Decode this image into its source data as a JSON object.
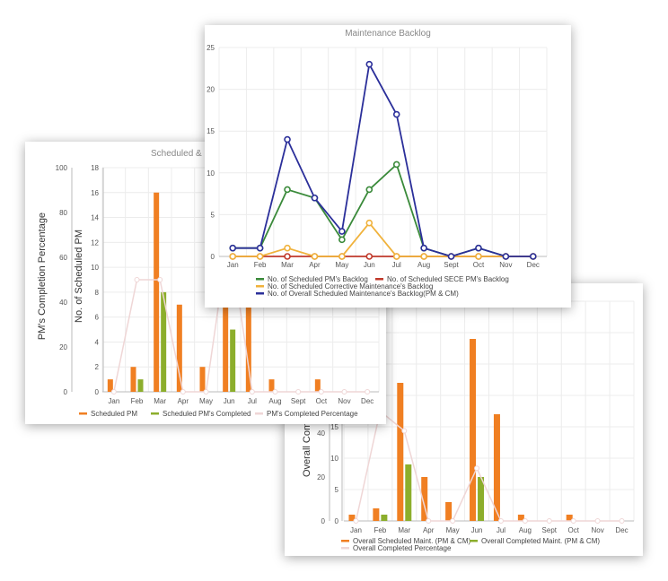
{
  "chart_data": [
    {
      "id": "scheduled_pm",
      "type": "bar",
      "title": "Scheduled &",
      "categories": [
        "Jan",
        "Feb",
        "Mar",
        "Apr",
        "May",
        "Jun",
        "Jul",
        "Aug",
        "Sept",
        "Oct",
        "Nov",
        "Dec"
      ],
      "ylabel": "No. of Scheduled PM",
      "y2label": "PM's Completion Percentage",
      "ylim": [
        0,
        18
      ],
      "y2lim": [
        0,
        100
      ],
      "grid": true,
      "legend_position": "bottom",
      "series": [
        {
          "name": "Scheduled PM",
          "type": "bar",
          "axis": "y",
          "color": "#f07f22",
          "values": [
            1,
            2,
            16,
            7,
            2,
            7,
            7,
            1,
            0,
            1,
            0,
            0
          ]
        },
        {
          "name": "Scheduled PM's Completed",
          "type": "bar",
          "axis": "y",
          "color": "#8cae2c",
          "values": [
            0,
            1,
            8,
            0,
            0,
            5,
            0,
            0,
            0,
            0,
            0,
            0
          ]
        },
        {
          "name": "PM's Completed Percentage",
          "type": "line",
          "axis": "y2",
          "color": "#efd6d6",
          "values": [
            0,
            50,
            50,
            0,
            0,
            71,
            0,
            0,
            0,
            0,
            0,
            0
          ]
        }
      ]
    },
    {
      "id": "overall_maintenance",
      "type": "bar",
      "title": "",
      "categories": [
        "Jan",
        "Feb",
        "Mar",
        "Apr",
        "May",
        "Jun",
        "Jul",
        "Aug",
        "Sept",
        "Oct",
        "Nov",
        "Dec"
      ],
      "ylabel": "",
      "y2label": "Overall Com",
      "ylim": [
        0,
        35
      ],
      "y2lim": [
        0,
        100
      ],
      "grid": true,
      "legend_position": "bottom",
      "series": [
        {
          "name": "Overall Scheduled  Maint. (PM & CM)",
          "type": "bar",
          "axis": "y",
          "color": "#f07f22",
          "values": [
            1,
            2,
            22,
            7,
            3,
            29,
            17,
            1,
            0,
            1,
            0,
            0
          ]
        },
        {
          "name": "Overall Completed Maint. (PM & CM)",
          "type": "bar",
          "axis": "y",
          "color": "#8cae2c",
          "values": [
            0,
            1,
            9,
            0,
            0,
            7,
            0,
            0,
            0,
            0,
            0,
            0
          ]
        },
        {
          "name": "Overall Completed Percentage",
          "type": "line",
          "axis": "y2",
          "color": "#efd6d6",
          "values": [
            0,
            50,
            41,
            0,
            0,
            24,
            0,
            0,
            0,
            0,
            0,
            0
          ]
        }
      ]
    },
    {
      "id": "maintenance_backlog",
      "type": "line",
      "title": "Maintenance Backlog",
      "categories": [
        "Jan",
        "Feb",
        "Mar",
        "Apr",
        "May",
        "Jun",
        "Jul",
        "Aug",
        "Sept",
        "Oct",
        "Nov",
        "Dec"
      ],
      "ylabel": "",
      "ylim": [
        0,
        25
      ],
      "grid": true,
      "legend_position": "bottom",
      "series": [
        {
          "name": "No. of Scheduled PM's Backlog",
          "type": "line",
          "axis": "y",
          "color": "#3a8a3a",
          "values": [
            1,
            1,
            8,
            7,
            2,
            8,
            11,
            1,
            0,
            1,
            0,
            0
          ]
        },
        {
          "name": "No. of Scheduled SECE PM's Backlog",
          "type": "line",
          "axis": "y",
          "color": "#c0392b",
          "values": [
            0,
            0,
            0,
            0,
            0,
            0,
            0,
            0,
            0,
            0,
            0,
            0
          ]
        },
        {
          "name": "No. of Scheduled Corrective Maintenance's Backlog",
          "type": "line",
          "axis": "y",
          "color": "#f0b23c",
          "values": [
            0,
            0,
            1,
            0,
            0,
            4,
            0,
            0,
            0,
            0,
            0,
            0
          ]
        },
        {
          "name": "No. of Overall Scheduled Maintenance's Backlog(PM & CM)",
          "type": "line",
          "axis": "y",
          "color": "#2b2f9a",
          "values": [
            1,
            1,
            14,
            7,
            3,
            23,
            17,
            1,
            0,
            1,
            0,
            0
          ]
        }
      ]
    }
  ]
}
